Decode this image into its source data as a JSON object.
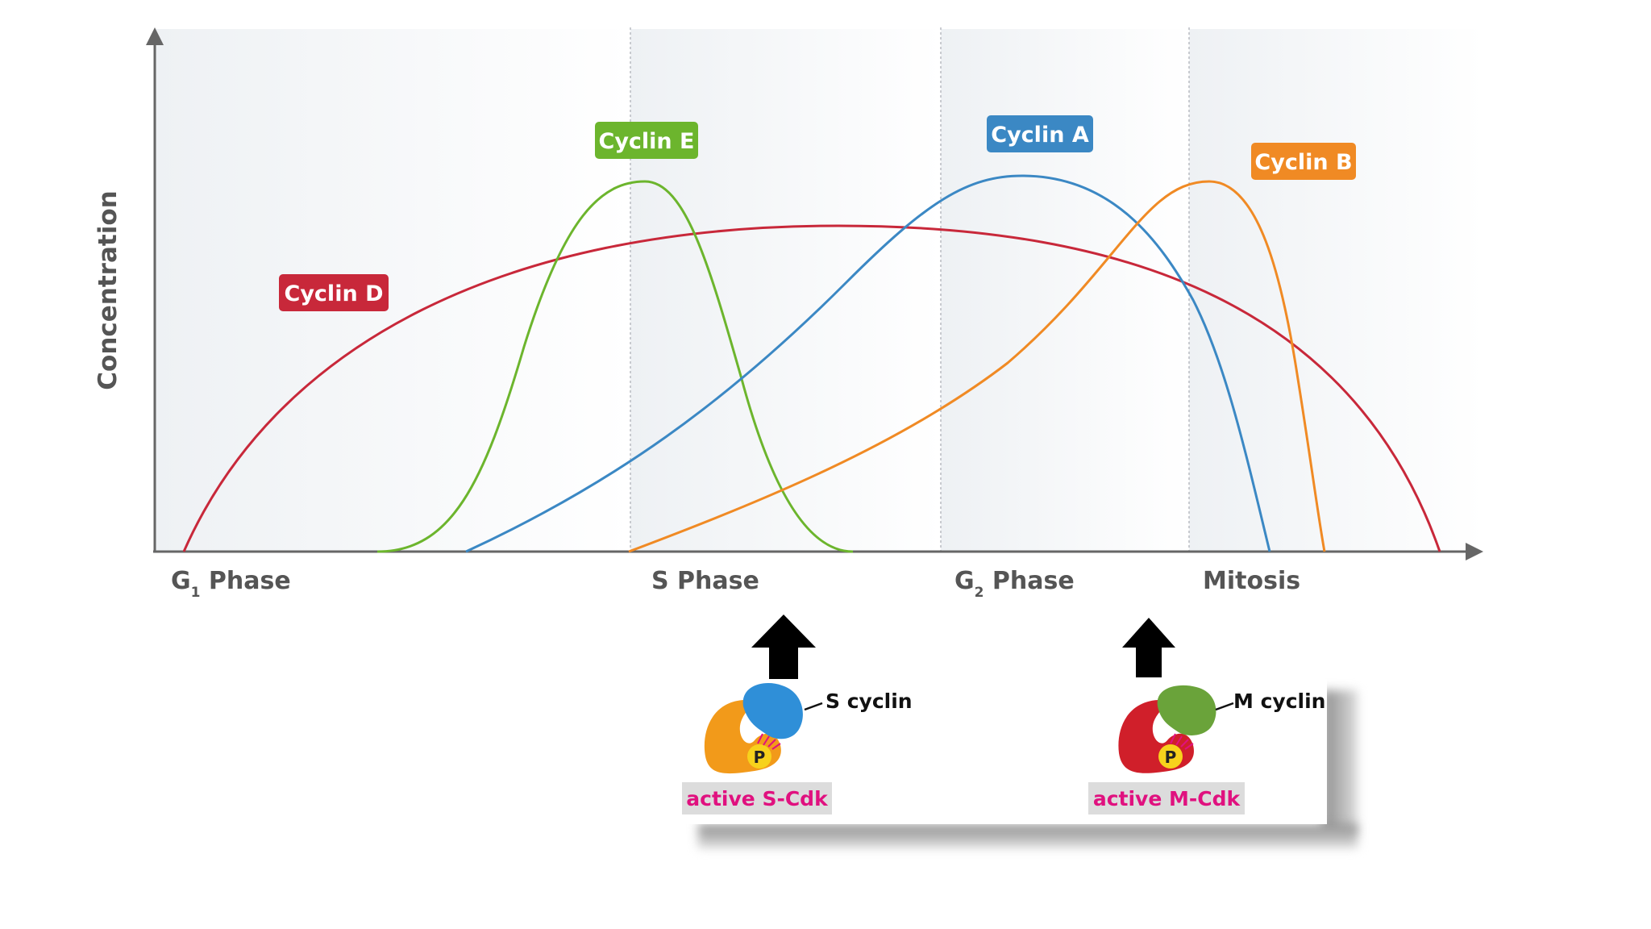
{
  "axis": {
    "ylabel": "Concentration"
  },
  "phases": [
    {
      "id": "g1",
      "main": "G",
      "sub": "1",
      "suffix": " Phase"
    },
    {
      "id": "s",
      "main": "S Phase",
      "sub": "",
      "suffix": ""
    },
    {
      "id": "g2",
      "main": "G",
      "sub": "2",
      "suffix": " Phase"
    },
    {
      "id": "m",
      "main": "Mitosis",
      "sub": "",
      "suffix": ""
    }
  ],
  "cyclins": [
    {
      "id": "d",
      "label": "Cyclin D",
      "color": "#c8283a"
    },
    {
      "id": "e",
      "label": "Cyclin E",
      "color": "#6cb52d"
    },
    {
      "id": "a",
      "label": "Cyclin A",
      "color": "#3b88c4"
    },
    {
      "id": "b",
      "label": "Cyclin B",
      "color": "#f08a24"
    }
  ],
  "inset": {
    "s_cdk": {
      "cyclin_label": "S cyclin",
      "complex_label": "active S-Cdk",
      "phospho": "P",
      "cdk_color": "#f29a1a",
      "cyclin_color": "#2f8fd8"
    },
    "m_cdk": {
      "cyclin_label": "M cyclin",
      "complex_label": "active M-Cdk",
      "phospho": "P",
      "cdk_color": "#d01f2a",
      "cyclin_color": "#6aa33a"
    },
    "label_color": "#e0117f",
    "label_bg": "#dcdcdc"
  }
}
